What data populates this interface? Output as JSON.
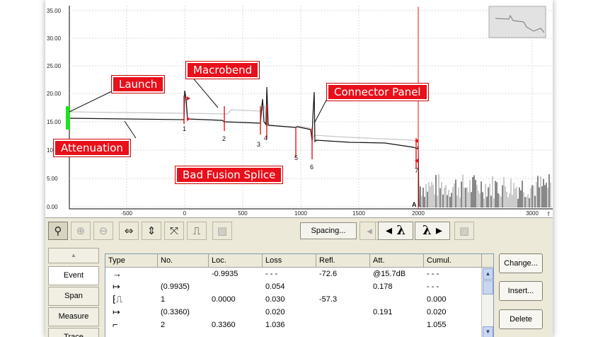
{
  "plot": {
    "y_ticks": [
      "35.00",
      "30.00",
      "25.00",
      "20.00",
      "15.00",
      "10.00",
      "5.00",
      "0.00"
    ],
    "x_ticks": [
      "-500",
      "0",
      "500",
      "1000",
      "1500",
      "2000",
      "3000"
    ],
    "x_axis_letter": "f",
    "event_markers": [
      "1",
      "2",
      "3",
      "4",
      "5",
      "6",
      "7"
    ],
    "cursor_label": "A",
    "trace_color": "#111111",
    "reference_color": "#c8c8c8",
    "marker_color": "#e3151d",
    "launch_marker_color": "#1ee21e"
  },
  "callouts": {
    "launch": "Launch",
    "macrobend": "Macrobend",
    "connector_panel": "Connector Panel",
    "attenuation": "Attenuation",
    "bad_fusion_splice": "Bad Fusion Splice"
  },
  "toolbar": {
    "spacing_label": "Spacing...",
    "lambda_prev": "◂ λ",
    "lambda_next": "λ ▸"
  },
  "side_tabs": [
    "Event",
    "Span",
    "Measure",
    "Trace"
  ],
  "side_up_arrow": "▲",
  "table": {
    "columns": [
      "Type",
      "No.",
      "Loc.",
      "Loss",
      "Refl.",
      "Att.",
      "Cumul."
    ],
    "rows": [
      {
        "type_icon": "arrow-right-icon",
        "type": "→",
        "no": "",
        "loc": "-0.9935",
        "loss": "- - -",
        "refl": "-72.6",
        "att": "@15.7dB",
        "cumul": "- - -"
      },
      {
        "type_icon": "span-icon",
        "type": "↦",
        "no": "(0.9935)",
        "loc": "",
        "loss": "0.054",
        "refl": "",
        "att": "0.178",
        "cumul": "- - -"
      },
      {
        "type_icon": "reflective-event-icon",
        "type": "⁅⎍",
        "no": "1",
        "loc": "0.0000",
        "loss": "0.030",
        "refl": "-57.3",
        "att": "",
        "cumul": "0.000"
      },
      {
        "type_icon": "span-icon",
        "type": "↦",
        "no": "(0.3360)",
        "loc": "",
        "loss": "0.020",
        "refl": "",
        "att": "0.191",
        "cumul": "0.020"
      },
      {
        "type_icon": "non-reflective-event-icon",
        "type": "⌐",
        "no": "2",
        "loc": "0.3360",
        "loss": "1.036",
        "refl": "",
        "att": "",
        "cumul": "1.055"
      }
    ]
  },
  "actions": [
    "Change...",
    "Insert...",
    "Delete"
  ]
}
